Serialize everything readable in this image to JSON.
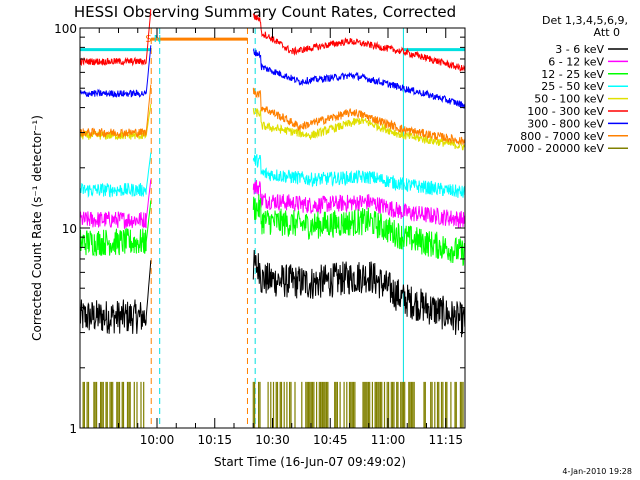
{
  "chart_data": {
    "type": "line",
    "title": "HESSI Observing Summary Count Rates, Corrected",
    "xlabel": "Start Time (16-Jun-07 09:49:02)",
    "ylabel": "Corrected Count Rate (s⁻¹ detector⁻¹)",
    "yscale": "log",
    "ylim": [
      1,
      100
    ],
    "xlim_minutes": [
      -5,
      95
    ],
    "x_tick_minutes": [
      15,
      30,
      45,
      60,
      75,
      90
    ],
    "x_tick_labels": [
      "10:00",
      "10:15",
      "10:30",
      "10:45",
      "11:00",
      "11:15"
    ],
    "y_tick_values": [
      1,
      10,
      100
    ],
    "y_tick_labels": [
      "1",
      "10",
      "100"
    ],
    "legend_header": [
      "Det 1,3,4,5,6,9,",
      "Att 0"
    ],
    "legend_position": "right",
    "footer_date": "4-Jan-2010 19:28",
    "markers": [
      {
        "label": "S",
        "color": "#ff8000",
        "minute": 13.5
      },
      {
        "label": "N",
        "color": "#00e0e0",
        "minute": 15.7
      }
    ],
    "vertical_lines": [
      {
        "minute": 13.5,
        "color": "#ff8000",
        "style": "dashed"
      },
      {
        "minute": 15.7,
        "color": "#00e0e0",
        "style": "dashed"
      },
      {
        "minute": 38.5,
        "color": "#ff8000",
        "style": "dashed"
      },
      {
        "minute": 40.5,
        "color": "#00e0e0",
        "style": "dashed"
      },
      {
        "minute": 79,
        "color": "#00e0e0",
        "style": "solid"
      },
      {
        "minute": 95,
        "color": "#00e0e0",
        "style": "dashed"
      },
      {
        "minute": -5,
        "color": "#00e0e0",
        "style": "solid"
      }
    ],
    "horizontal_segments": [
      {
        "color": "#00e0e0",
        "from_minute": -5,
        "to_minute": 13.5,
        "y": 78
      },
      {
        "color": "#ff8000",
        "from_minute": 13.5,
        "to_minute": 38.5,
        "y": 88
      },
      {
        "color": "#00e0e0",
        "from_minute": 79,
        "to_minute": 95,
        "y": 78
      }
    ],
    "series": [
      {
        "name": "3 - 6 keV",
        "color": "#000000",
        "pre_level": 3.6,
        "post_levels": [
          [
            40,
            5.6
          ],
          [
            55,
            5.3
          ],
          [
            70,
            5.8
          ],
          [
            79,
            4.4
          ],
          [
            95,
            3.4
          ]
        ],
        "noise": 0.2
      },
      {
        "name": "6 - 12 keV",
        "color": "#ff00ff",
        "pre_level": 11.0,
        "post_levels": [
          [
            40,
            14.0
          ],
          [
            55,
            13.0
          ],
          [
            70,
            13.5
          ],
          [
            79,
            12.0
          ],
          [
            95,
            11.0
          ]
        ],
        "noise": 0.1
      },
      {
        "name": "12 - 25 keV",
        "color": "#00ff00",
        "pre_level": 8.5,
        "post_levels": [
          [
            40,
            11.0
          ],
          [
            55,
            10.3
          ],
          [
            70,
            10.8
          ],
          [
            79,
            9.0
          ],
          [
            95,
            7.5
          ]
        ],
        "noise": 0.16
      },
      {
        "name": "25 - 50 keV",
        "color": "#00ffff",
        "pre_level": 15.5,
        "post_levels": [
          [
            40,
            19.0
          ],
          [
            55,
            17.5
          ],
          [
            70,
            18.0
          ],
          [
            79,
            16.5
          ],
          [
            95,
            15.0
          ]
        ],
        "noise": 0.08
      },
      {
        "name": "50 - 100 keV",
        "color": "#e0e000",
        "pre_level": 29.0,
        "post_levels": [
          [
            40,
            33.0
          ],
          [
            55,
            29.0
          ],
          [
            68,
            34.5
          ],
          [
            79,
            29.0
          ],
          [
            95,
            25.5
          ]
        ],
        "noise": 0.05
      },
      {
        "name": "100 - 300 keV",
        "color": "#ff0000",
        "pre_level": 68.0,
        "post_levels": [
          [
            40,
            100.0
          ],
          [
            50,
            76.0
          ],
          [
            65,
            86.0
          ],
          [
            79,
            76.0
          ],
          [
            95,
            62.0
          ]
        ],
        "noise": 0.04
      },
      {
        "name": "300 - 800 keV",
        "color": "#0000ff",
        "pre_level": 47.0,
        "post_levels": [
          [
            40,
            66.0
          ],
          [
            52,
            54.0
          ],
          [
            66,
            58.0
          ],
          [
            79,
            50.0
          ],
          [
            95,
            41.0
          ]
        ],
        "noise": 0.04
      },
      {
        "name": "800 - 7000 keV",
        "color": "#ff8000",
        "pre_level": 30.0,
        "post_levels": [
          [
            40,
            42.0
          ],
          [
            52,
            32.0
          ],
          [
            66,
            38.0
          ],
          [
            79,
            31.0
          ],
          [
            95,
            27.0
          ]
        ],
        "noise": 0.05
      },
      {
        "name": "7000 - 20000 keV",
        "color": "#808000",
        "pre_level": 1.7,
        "post_levels": [
          [
            40,
            1.7
          ],
          [
            95,
            1.7
          ]
        ],
        "noise": 0.0,
        "style": "spiky"
      }
    ]
  }
}
